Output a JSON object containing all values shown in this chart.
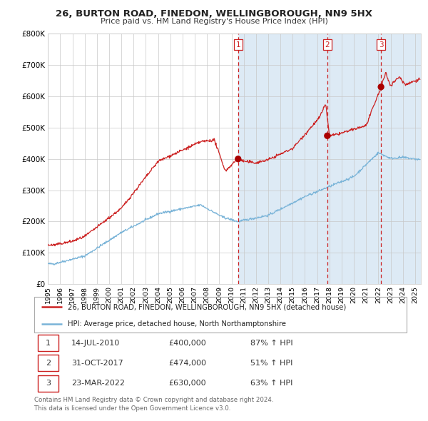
{
  "title": "26, BURTON ROAD, FINEDON, WELLINGBOROUGH, NN9 5HX",
  "subtitle": "Price paid vs. HM Land Registry's House Price Index (HPI)",
  "ylim": [
    0,
    800000
  ],
  "yticks": [
    0,
    100000,
    200000,
    300000,
    400000,
    500000,
    600000,
    700000,
    800000
  ],
  "ytick_labels": [
    "£0",
    "£100K",
    "£200K",
    "£300K",
    "£400K",
    "£500K",
    "£600K",
    "£700K",
    "£800K"
  ],
  "xlim_start": 1995.0,
  "xlim_end": 2025.5,
  "sale1": {
    "year": 2010.54,
    "price": 400000,
    "label": "1",
    "date": "14-JUL-2010",
    "price_str": "£400,000",
    "pct": "87% ↑ HPI"
  },
  "sale2": {
    "year": 2017.83,
    "price": 474000,
    "label": "2",
    "date": "31-OCT-2017",
    "price_str": "£474,000",
    "pct": "51% ↑ HPI"
  },
  "sale3": {
    "year": 2022.22,
    "price": 630000,
    "label": "3",
    "date": "23-MAR-2022",
    "price_str": "£630,000",
    "pct": "63% ↑ HPI"
  },
  "hpi_line_color": "#7ab4d8",
  "price_line_color": "#cc2222",
  "background_fill_color": "#ddeaf5",
  "grid_color": "#c8c8c8",
  "dot_color": "#aa0000",
  "legend1": "26, BURTON ROAD, FINEDON, WELLINGBOROUGH, NN9 5HX (detached house)",
  "legend2": "HPI: Average price, detached house, North Northamptonshire",
  "footer1": "Contains HM Land Registry data © Crown copyright and database right 2024.",
  "footer2": "This data is licensed under the Open Government Licence v3.0."
}
